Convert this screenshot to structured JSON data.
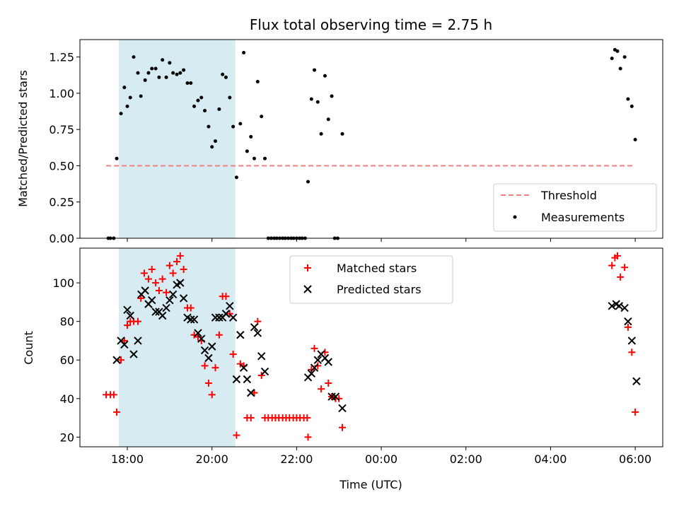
{
  "chart_data": [
    {
      "type": "scatter",
      "title": "Flux total observing time = 2.75 h",
      "xlabel": "",
      "ylabel": "Matched/Predicted stars",
      "ylim": [
        0,
        1.37
      ],
      "yticks": [
        0.0,
        0.25,
        0.5,
        0.75,
        1.0,
        1.25
      ],
      "ytick_labels": [
        "0.00",
        "0.25",
        "0.50",
        "0.75",
        "1.00",
        "1.25"
      ],
      "x_unit": "hours since 00:00 of first night",
      "xlim": [
        16.88,
        30.65
      ],
      "shaded_interval": [
        17.8,
        20.55
      ],
      "shade_color": "#add8e6",
      "legend_position": "lower-right",
      "threshold": {
        "name": "Threshold",
        "value": 0.5,
        "x_range": [
          17.5,
          30.0
        ],
        "color": "#f08080"
      },
      "series": [
        {
          "name": "Measurements",
          "color": "#000000",
          "marker": "dot",
          "points": [
            [
              17.55,
              0
            ],
            [
              17.6,
              0
            ],
            [
              17.68,
              0
            ],
            [
              17.75,
              0.55
            ],
            [
              17.85,
              0.86
            ],
            [
              17.93,
              1.04
            ],
            [
              18.0,
              0.91
            ],
            [
              18.07,
              0.97
            ],
            [
              18.15,
              1.25
            ],
            [
              18.25,
              1.14
            ],
            [
              18.32,
              0.98
            ],
            [
              18.42,
              1.09
            ],
            [
              18.5,
              1.14
            ],
            [
              18.58,
              1.17
            ],
            [
              18.67,
              1.17
            ],
            [
              18.75,
              1.11
            ],
            [
              18.83,
              1.23
            ],
            [
              18.92,
              1.11
            ],
            [
              19.0,
              1.21
            ],
            [
              19.08,
              1.14
            ],
            [
              19.17,
              1.13
            ],
            [
              19.25,
              1.14
            ],
            [
              19.33,
              1.16
            ],
            [
              19.42,
              1.07
            ],
            [
              19.5,
              1.07
            ],
            [
              19.58,
              0.91
            ],
            [
              19.67,
              0.95
            ],
            [
              19.75,
              0.97
            ],
            [
              19.83,
              0.88
            ],
            [
              19.92,
              0.77
            ],
            [
              20.0,
              0.63
            ],
            [
              20.08,
              0.67
            ],
            [
              20.17,
              0.89
            ],
            [
              20.25,
              1.13
            ],
            [
              20.33,
              1.11
            ],
            [
              20.42,
              0.97
            ],
            [
              20.5,
              0.77
            ],
            [
              20.58,
              0.42
            ],
            [
              20.67,
              0.79
            ],
            [
              20.75,
              1.28
            ],
            [
              20.83,
              0.6
            ],
            [
              20.92,
              0.7
            ],
            [
              21.0,
              0.55
            ],
            [
              21.08,
              1.08
            ],
            [
              21.17,
              0.84
            ],
            [
              21.25,
              0.55
            ],
            [
              21.33,
              0
            ],
            [
              21.4,
              0
            ],
            [
              21.47,
              0
            ],
            [
              21.53,
              0
            ],
            [
              21.6,
              0
            ],
            [
              21.67,
              0
            ],
            [
              21.73,
              0
            ],
            [
              21.8,
              0
            ],
            [
              21.87,
              0
            ],
            [
              21.93,
              0
            ],
            [
              22.0,
              0
            ],
            [
              22.07,
              0
            ],
            [
              22.13,
              0
            ],
            [
              22.2,
              0
            ],
            [
              22.27,
              0.39
            ],
            [
              22.35,
              0.96
            ],
            [
              22.42,
              1.16
            ],
            [
              22.5,
              0.94
            ],
            [
              22.58,
              0.72
            ],
            [
              22.67,
              1.12
            ],
            [
              22.75,
              0.82
            ],
            [
              22.83,
              0.98
            ],
            [
              22.9,
              0
            ],
            [
              22.97,
              0
            ],
            [
              23.08,
              0.72
            ],
            [
              29.45,
              1.24
            ],
            [
              29.52,
              1.3
            ],
            [
              29.58,
              1.29
            ],
            [
              29.65,
              1.17
            ],
            [
              29.75,
              1.25
            ],
            [
              29.83,
              0.96
            ],
            [
              29.92,
              0.91
            ],
            [
              30.0,
              0.68
            ]
          ]
        }
      ]
    },
    {
      "type": "scatter",
      "title": "",
      "xlabel": "Time (UTC)",
      "ylabel": "Count",
      "ylim": [
        15,
        118
      ],
      "yticks": [
        20,
        40,
        60,
        80,
        100
      ],
      "ytick_labels": [
        "20",
        "40",
        "60",
        "80",
        "100"
      ],
      "x_unit": "hours since 00:00 of first night",
      "xlim": [
        16.88,
        30.65
      ],
      "xticks": [
        18,
        20,
        22,
        24,
        26,
        28,
        30
      ],
      "xtick_labels": [
        "18:00",
        "20:00",
        "22:00",
        "00:00",
        "02:00",
        "04:00",
        "06:00"
      ],
      "shaded_interval": [
        17.8,
        20.55
      ],
      "shade_color": "#add8e6",
      "legend_position": "top-center",
      "series": [
        {
          "name": "Matched stars",
          "color": "#ff0000",
          "marker": "plus",
          "points": [
            [
              17.5,
              42
            ],
            [
              17.6,
              42
            ],
            [
              17.68,
              42
            ],
            [
              17.75,
              33
            ],
            [
              17.85,
              60
            ],
            [
              17.93,
              70
            ],
            [
              18.0,
              78
            ],
            [
              18.07,
              80
            ],
            [
              18.15,
              80
            ],
            [
              18.25,
              80
            ],
            [
              18.32,
              92
            ],
            [
              18.4,
              105
            ],
            [
              18.5,
              102
            ],
            [
              18.58,
              107
            ],
            [
              18.67,
              100
            ],
            [
              18.75,
              96
            ],
            [
              18.83,
              102
            ],
            [
              18.92,
              95
            ],
            [
              19.0,
              109
            ],
            [
              19.08,
              105
            ],
            [
              19.17,
              111
            ],
            [
              19.25,
              114
            ],
            [
              19.33,
              107
            ],
            [
              19.42,
              87
            ],
            [
              19.5,
              87
            ],
            [
              19.58,
              73
            ],
            [
              19.67,
              72
            ],
            [
              19.75,
              70
            ],
            [
              19.83,
              57
            ],
            [
              19.92,
              48
            ],
            [
              20.0,
              42
            ],
            [
              20.08,
              56
            ],
            [
              20.17,
              73
            ],
            [
              20.25,
              93
            ],
            [
              20.33,
              93
            ],
            [
              20.42,
              84
            ],
            [
              20.5,
              63
            ],
            [
              20.58,
              21
            ],
            [
              20.67,
              58
            ],
            [
              20.75,
              57
            ],
            [
              20.83,
              30
            ],
            [
              20.92,
              30
            ],
            [
              21.0,
              43
            ],
            [
              21.08,
              80
            ],
            [
              21.17,
              52
            ],
            [
              21.25,
              30
            ],
            [
              21.33,
              30
            ],
            [
              21.42,
              30
            ],
            [
              21.5,
              30
            ],
            [
              21.58,
              30
            ],
            [
              21.67,
              30
            ],
            [
              21.75,
              30
            ],
            [
              21.83,
              30
            ],
            [
              21.92,
              30
            ],
            [
              22.0,
              30
            ],
            [
              22.08,
              30
            ],
            [
              22.17,
              30
            ],
            [
              22.25,
              30
            ],
            [
              22.27,
              20
            ],
            [
              22.35,
              55
            ],
            [
              22.42,
              66
            ],
            [
              22.5,
              57
            ],
            [
              22.58,
              45
            ],
            [
              22.67,
              64
            ],
            [
              22.75,
              48
            ],
            [
              22.83,
              41
            ],
            [
              22.92,
              40
            ],
            [
              23.0,
              40
            ],
            [
              23.08,
              25
            ],
            [
              29.45,
              109
            ],
            [
              29.52,
              113
            ],
            [
              29.58,
              114
            ],
            [
              29.65,
              103
            ],
            [
              29.75,
              108
            ],
            [
              29.83,
              77
            ],
            [
              29.92,
              64
            ],
            [
              30.0,
              33
            ]
          ]
        },
        {
          "name": "Predicted stars",
          "color": "#000000",
          "marker": "cross",
          "points": [
            [
              17.75,
              60
            ],
            [
              17.85,
              70
            ],
            [
              17.93,
              68
            ],
            [
              18.0,
              86
            ],
            [
              18.07,
              83
            ],
            [
              18.15,
              63
            ],
            [
              18.25,
              70
            ],
            [
              18.33,
              94
            ],
            [
              18.42,
              96
            ],
            [
              18.5,
              89
            ],
            [
              18.58,
              91
            ],
            [
              18.67,
              85
            ],
            [
              18.75,
              85
            ],
            [
              18.83,
              83
            ],
            [
              18.92,
              87
            ],
            [
              19.0,
              91
            ],
            [
              19.08,
              94
            ],
            [
              19.17,
              99
            ],
            [
              19.25,
              100
            ],
            [
              19.33,
              92
            ],
            [
              19.42,
              82
            ],
            [
              19.5,
              81
            ],
            [
              19.58,
              81
            ],
            [
              19.67,
              74
            ],
            [
              19.75,
              71
            ],
            [
              19.83,
              65
            ],
            [
              19.92,
              61
            ],
            [
              20.0,
              67
            ],
            [
              20.08,
              82
            ],
            [
              20.17,
              82
            ],
            [
              20.25,
              82
            ],
            [
              20.33,
              84
            ],
            [
              20.42,
              88
            ],
            [
              20.5,
              82
            ],
            [
              20.58,
              50
            ],
            [
              20.67,
              73
            ],
            [
              20.75,
              56
            ],
            [
              20.83,
              50
            ],
            [
              20.92,
              43
            ],
            [
              21.0,
              77
            ],
            [
              21.08,
              74
            ],
            [
              21.17,
              62
            ],
            [
              21.25,
              54
            ],
            [
              22.27,
              51
            ],
            [
              22.35,
              53
            ],
            [
              22.42,
              56
            ],
            [
              22.5,
              60
            ],
            [
              22.58,
              63
            ],
            [
              22.67,
              61
            ],
            [
              22.75,
              59
            ],
            [
              22.83,
              41
            ],
            [
              22.92,
              41
            ],
            [
              23.08,
              35
            ],
            [
              29.45,
              88
            ],
            [
              29.55,
              89
            ],
            [
              29.62,
              88
            ],
            [
              29.75,
              87
            ],
            [
              29.83,
              80
            ],
            [
              29.92,
              70
            ],
            [
              30.03,
              49
            ]
          ]
        }
      ]
    }
  ]
}
